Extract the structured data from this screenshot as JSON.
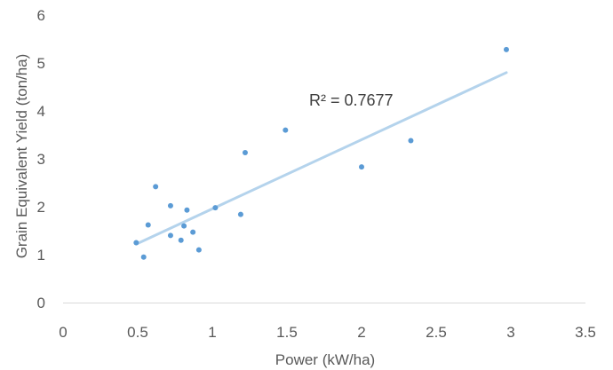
{
  "chart_data": {
    "type": "scatter",
    "title": "",
    "xlabel": "Power (kW/ha)",
    "ylabel": "Grain Equivalent Yield (ton/ha)",
    "xlim": [
      0,
      3.5
    ],
    "ylim": [
      0,
      6
    ],
    "x_ticks": [
      "0",
      "0.5",
      "1",
      "1.5",
      "2",
      "2.5",
      "3",
      "3.5"
    ],
    "y_ticks": [
      "0",
      "1",
      "2",
      "3",
      "4",
      "5",
      "6"
    ],
    "grid": false,
    "legend": "none",
    "series": [
      {
        "points": [
          {
            "x": 0.49,
            "y": 1.25
          },
          {
            "x": 0.54,
            "y": 0.95
          },
          {
            "x": 0.57,
            "y": 1.62
          },
          {
            "x": 0.62,
            "y": 2.42
          },
          {
            "x": 0.72,
            "y": 2.02
          },
          {
            "x": 0.72,
            "y": 1.4
          },
          {
            "x": 0.79,
            "y": 1.3
          },
          {
            "x": 0.81,
            "y": 1.6
          },
          {
            "x": 0.83,
            "y": 1.93
          },
          {
            "x": 0.87,
            "y": 1.47
          },
          {
            "x": 0.91,
            "y": 1.1
          },
          {
            "x": 1.02,
            "y": 1.98
          },
          {
            "x": 1.19,
            "y": 1.84
          },
          {
            "x": 1.22,
            "y": 3.13
          },
          {
            "x": 1.49,
            "y": 3.6
          },
          {
            "x": 2.0,
            "y": 2.83
          },
          {
            "x": 2.33,
            "y": 3.38
          },
          {
            "x": 2.97,
            "y": 5.28
          }
        ]
      }
    ],
    "trendline": {
      "type": "linear",
      "start": {
        "x": 0.49,
        "y": 1.22
      },
      "end": {
        "x": 2.97,
        "y": 4.8
      }
    },
    "annotations": [
      {
        "text": "R² = 0.7677"
      }
    ],
    "colors": {
      "point": "#5b9bd5",
      "trendline": "#b4d3ec",
      "axis": "#d9d9d9",
      "text": "#595959"
    }
  }
}
